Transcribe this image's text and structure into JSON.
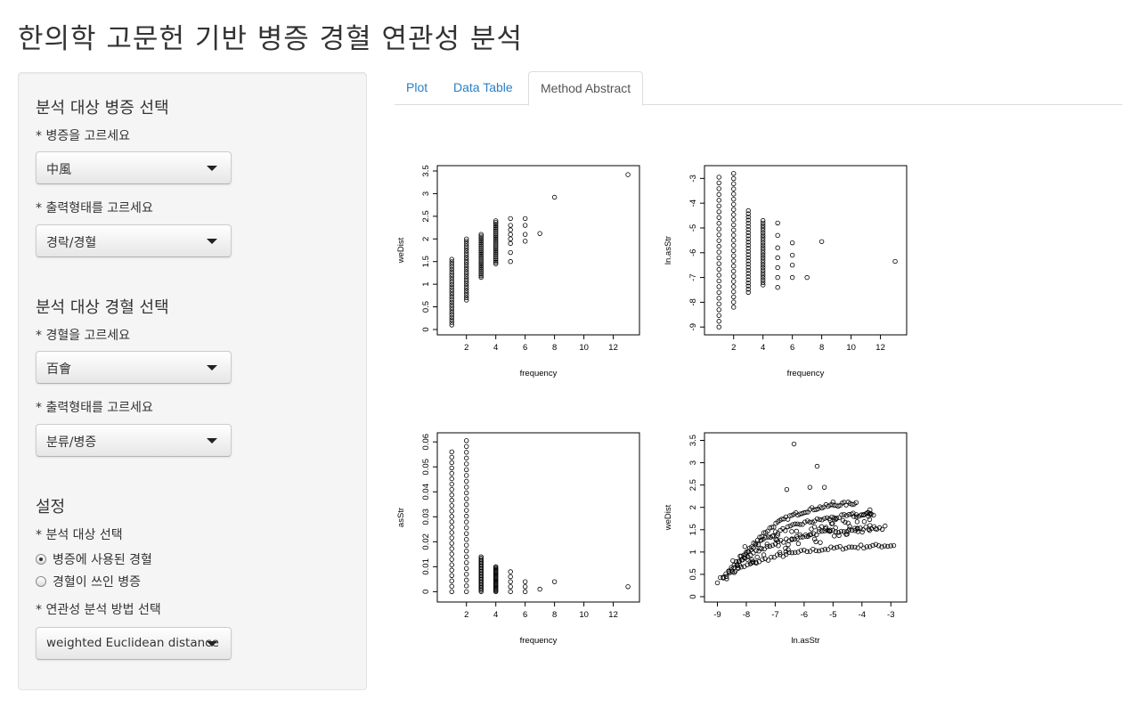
{
  "page": {
    "title": "한의학 고문헌 기반 병증 경혈 연관성 분석"
  },
  "sidebar": {
    "section1": {
      "title": "분석 대상 병증 선택",
      "field1_label": "* 병증을 고르세요",
      "field1_value": "中風",
      "field2_label": "* 출력형태를 고르세요",
      "field2_value": "경락/경혈"
    },
    "section2": {
      "title": "분석 대상 경혈 선택",
      "field1_label": "* 경혈을 고르세요",
      "field1_value": "百會",
      "field2_label": "* 출력형태를 고르세요",
      "field2_value": "분류/병증"
    },
    "section3": {
      "title": "설정",
      "target_label": "* 분석 대상 선택",
      "radio_options": [
        "병증에 사용된 경혈",
        "경혈이 쓰인 병증"
      ],
      "radio_selected": 0,
      "method_label": "* 연관성 분석 방법 선택",
      "method_value": "weighted Euclidean distance"
    }
  },
  "tabs": {
    "items": [
      "Plot",
      "Data Table",
      "Method Abstract"
    ],
    "active": 2
  },
  "chart_data": [
    {
      "type": "scatter",
      "xlabel": "frequency",
      "ylabel": "weDist",
      "xlim": [
        0.5,
        13.3
      ],
      "ylim": [
        0,
        3.5
      ],
      "xticks": [
        2,
        4,
        6,
        8,
        10,
        12
      ],
      "yticks": [
        0.0,
        0.5,
        1.0,
        1.5,
        2.0,
        2.5,
        3.0,
        3.5
      ],
      "clusters": [
        {
          "x": 1,
          "ymin": 0.1,
          "ymax": 1.55
        },
        {
          "x": 2,
          "ymin": 0.65,
          "ymax": 2.0
        },
        {
          "x": 3,
          "ymin": 1.15,
          "ymax": 2.1
        },
        {
          "x": 4,
          "ymin": 1.45,
          "ymax": 2.4
        }
      ],
      "points": [
        [
          5,
          1.5
        ],
        [
          5,
          1.7
        ],
        [
          5,
          1.9
        ],
        [
          5,
          2.0
        ],
        [
          5,
          2.1
        ],
        [
          5,
          2.2
        ],
        [
          5,
          2.3
        ],
        [
          5,
          2.45
        ],
        [
          6,
          1.95
        ],
        [
          6,
          2.1
        ],
        [
          6,
          2.3
        ],
        [
          6,
          2.45
        ],
        [
          7,
          2.12
        ],
        [
          8,
          2.92
        ],
        [
          13,
          3.42
        ]
      ]
    },
    {
      "type": "scatter",
      "xlabel": "frequency",
      "ylabel": "ln.asStr",
      "xlim": [
        0.5,
        13.3
      ],
      "ylim": [
        -9.1,
        -2.7
      ],
      "xticks": [
        2,
        4,
        6,
        8,
        10,
        12
      ],
      "yticks": [
        -9,
        -8,
        -7,
        -6,
        -5,
        -4,
        -3
      ],
      "clusters": [
        {
          "x": 1,
          "ymin": -9.0,
          "ymax": -2.95
        },
        {
          "x": 2,
          "ymin": -8.2,
          "ymax": -2.8
        },
        {
          "x": 3,
          "ymin": -7.6,
          "ymax": -4.3
        },
        {
          "x": 4,
          "ymin": -7.3,
          "ymax": -4.7
        }
      ],
      "points": [
        [
          5,
          -7.4
        ],
        [
          5,
          -7.0
        ],
        [
          5,
          -6.6
        ],
        [
          5,
          -6.2
        ],
        [
          5,
          -5.8
        ],
        [
          5,
          -5.3
        ],
        [
          5,
          -4.8
        ],
        [
          6,
          -7.0
        ],
        [
          6,
          -6.5
        ],
        [
          6,
          -6.1
        ],
        [
          6,
          -5.6
        ],
        [
          7,
          -7.0
        ],
        [
          8,
          -5.55
        ],
        [
          13,
          -6.35
        ]
      ]
    },
    {
      "type": "scatter",
      "xlabel": "frequency",
      "ylabel": "asStr",
      "xlim": [
        0.5,
        13.3
      ],
      "ylim": [
        -0.002,
        0.0615
      ],
      "xticks": [
        2,
        4,
        6,
        8,
        10,
        12
      ],
      "yticks": [
        0.0,
        0.01,
        0.02,
        0.03,
        0.04,
        0.05,
        0.06
      ],
      "clusters": [
        {
          "x": 1,
          "ymin": 0.0,
          "ymax": 0.056
        },
        {
          "x": 2,
          "ymin": 0.0,
          "ymax": 0.0605
        },
        {
          "x": 3,
          "ymin": 0.0,
          "ymax": 0.014
        },
        {
          "x": 4,
          "ymin": 0.0,
          "ymax": 0.01
        }
      ],
      "points": [
        [
          5,
          0.0
        ],
        [
          5,
          0.002
        ],
        [
          5,
          0.004
        ],
        [
          5,
          0.006
        ],
        [
          5,
          0.008
        ],
        [
          6,
          0.0
        ],
        [
          6,
          0.002
        ],
        [
          6,
          0.004
        ],
        [
          7,
          0.001
        ],
        [
          8,
          0.004
        ],
        [
          13,
          0.002
        ]
      ]
    },
    {
      "type": "scatter",
      "xlabel": "ln.asStr",
      "ylabel": "weDist",
      "xlim": [
        -9.2,
        -2.7
      ],
      "ylim": [
        0,
        3.55
      ],
      "xticks": [
        -9,
        -8,
        -7,
        -6,
        -5,
        -4,
        -3
      ],
      "yticks": [
        0.0,
        0.5,
        1.0,
        1.5,
        2.0,
        2.5,
        3.0,
        3.5
      ],
      "points": [
        [
          -6.35,
          3.42
        ],
        [
          -5.55,
          2.92
        ],
        [
          -5.0,
          2.12
        ],
        [
          -5.8,
          2.45
        ],
        [
          -6.6,
          2.4
        ],
        [
          -5.3,
          2.45
        ]
      ]
    }
  ]
}
